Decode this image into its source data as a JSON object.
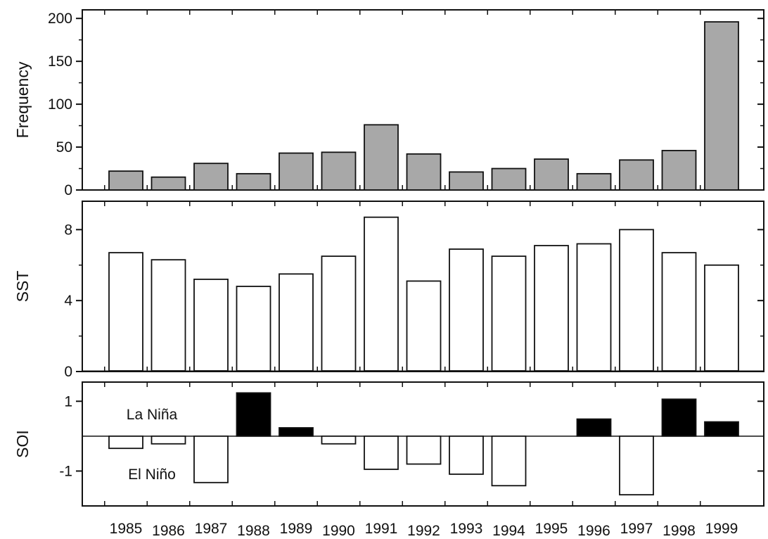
{
  "chart_data": [
    {
      "panel": "frequency",
      "type": "bar",
      "ylabel": "Frequency",
      "ylim": [
        0,
        210
      ],
      "yticks": [
        0,
        50,
        100,
        150,
        200
      ],
      "x": [
        1985,
        1986,
        1987,
        1988,
        1989,
        1990,
        1991,
        1992,
        1993,
        1994,
        1995,
        1996,
        1997,
        1998,
        1999
      ],
      "values": [
        22,
        15,
        31,
        19,
        43,
        44,
        76,
        42,
        21,
        25,
        36,
        19,
        35,
        46,
        196
      ],
      "bar_color": "#a8a8a8"
    },
    {
      "panel": "sst",
      "type": "bar",
      "ylabel": "SST",
      "ylim": [
        0,
        9.6
      ],
      "yticks": [
        0,
        4,
        8
      ],
      "x": [
        1985,
        1986,
        1987,
        1988,
        1989,
        1990,
        1991,
        1992,
        1993,
        1994,
        1995,
        1996,
        1997,
        1998,
        1999
      ],
      "values": [
        6.7,
        6.3,
        5.2,
        4.8,
        5.5,
        6.5,
        8.7,
        5.1,
        6.9,
        6.5,
        7.1,
        7.2,
        8.0,
        6.7,
        6.0
      ],
      "bar_color": "#ffffff"
    },
    {
      "panel": "soi",
      "type": "bar",
      "ylabel": "SOI",
      "ylim": [
        -2.0,
        1.55
      ],
      "yticks": [
        -1,
        1
      ],
      "x": [
        1985,
        1986,
        1987,
        1988,
        1989,
        1990,
        1991,
        1992,
        1993,
        1994,
        1995,
        1996,
        1997,
        1998,
        1999
      ],
      "values": [
        -0.35,
        -0.22,
        -1.33,
        1.24,
        0.24,
        -0.22,
        -0.95,
        -0.8,
        -1.09,
        -1.42,
        0.0,
        0.49,
        -1.68,
        1.06,
        0.41
      ],
      "positive_color": "#000000",
      "negative_color": "#ffffff",
      "annotations": [
        "La Niña",
        "El Niño"
      ]
    }
  ],
  "xtick_labels": [
    "1985",
    "1986",
    "1987",
    "1988",
    "1989",
    "1990",
    "1991",
    "1992",
    "1993",
    "1994",
    "1995",
    "1996",
    "1997",
    "1998",
    "1999"
  ]
}
